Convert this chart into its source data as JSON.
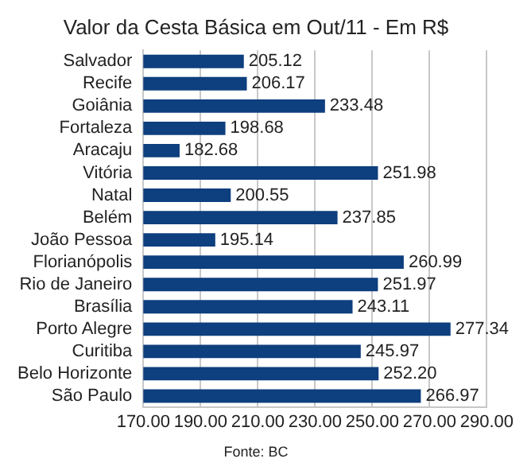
{
  "chart_data": {
    "type": "bar",
    "orientation": "horizontal",
    "title": "Valor da Cesta Básica em Out/11 - Em R$",
    "categories": [
      "Salvador",
      "Recife",
      "Goiânia",
      "Fortaleza",
      "Aracaju",
      "Vitória",
      "Natal",
      "Belém",
      "João Pessoa",
      "Florianópolis",
      "Rio de Janeiro",
      "Brasília",
      "Porto Alegre",
      "Curitiba",
      "Belo Horizonte",
      "São Paulo"
    ],
    "values": [
      205.12,
      206.17,
      233.48,
      198.68,
      182.68,
      251.98,
      200.55,
      237.85,
      195.14,
      260.99,
      251.97,
      243.11,
      277.34,
      245.97,
      252.2,
      266.97
    ],
    "value_labels": [
      "205.12",
      "206.17",
      "233.48",
      "198.68",
      "182.68",
      "251.98",
      "200.55",
      "237.85",
      "195.14",
      "260.99",
      "251.97",
      "243.11",
      "277.34",
      "245.97",
      "252.20",
      "266.97"
    ],
    "color": "#0e3f7e",
    "xlim": [
      170,
      290
    ],
    "xticks": [
      {
        "value": 170,
        "label": "170.00"
      },
      {
        "value": 190,
        "label": "190.00"
      },
      {
        "value": 210,
        "label": "210.00"
      },
      {
        "value": 230,
        "label": "230.00"
      },
      {
        "value": 250,
        "label": "250.00"
      },
      {
        "value": 270,
        "label": "270.00"
      },
      {
        "value": 290,
        "label": "290.00"
      }
    ],
    "grid": "x",
    "legend": false,
    "annotations": [
      "Fonte: BC"
    ]
  }
}
